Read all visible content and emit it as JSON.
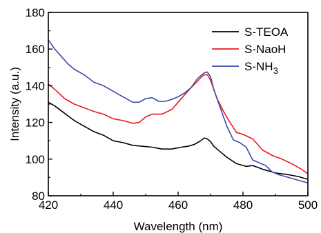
{
  "chart_data": {
    "type": "line",
    "title": "",
    "xlabel": "Wavelength (nm)",
    "ylabel": "Intensity (a.u.)",
    "xlim": [
      420,
      500
    ],
    "ylim": [
      80,
      180
    ],
    "xticks": [
      420,
      440,
      460,
      480,
      500
    ],
    "yticks": [
      80,
      100,
      120,
      140,
      160,
      180
    ],
    "grid": false,
    "legend_position": "top-right",
    "series": [
      {
        "name": "S-TEOA",
        "legend_main": "S-TEOA",
        "legend_sub": "",
        "color": "#000000",
        "x": [
          420,
          422,
          425,
          428,
          431,
          434,
          437,
          440,
          443,
          446,
          449,
          452,
          455,
          458,
          461,
          463,
          465,
          467,
          468,
          469,
          470,
          471,
          473,
          475,
          478,
          481,
          483,
          486,
          490,
          494,
          497,
          500
        ],
        "y": [
          131,
          129,
          125,
          121,
          118,
          115,
          113,
          110,
          109,
          107.5,
          107,
          106.5,
          105.5,
          105.5,
          106.5,
          107,
          108,
          110,
          111.5,
          111,
          109.5,
          107,
          104,
          101,
          97.5,
          96,
          96.5,
          94.5,
          92.5,
          91.5,
          90.5,
          89
        ]
      },
      {
        "name": "S-NaoH",
        "legend_main": "S-NaoH",
        "legend_sub": "",
        "color": "#e8191e",
        "x": [
          420,
          422,
          425,
          428,
          431,
          434,
          437,
          440,
          443,
          446,
          448,
          450,
          452,
          455,
          458,
          460,
          462,
          464,
          466,
          467,
          468,
          469,
          470,
          471,
          472,
          474,
          476,
          478,
          480,
          483,
          486,
          489,
          492,
          495,
          498,
          500
        ],
        "y": [
          141,
          138,
          133,
          130,
          128,
          126,
          124.5,
          122,
          121,
          119.5,
          120,
          123,
          124.5,
          124.5,
          127,
          131,
          135,
          139,
          142.5,
          144.5,
          146,
          146,
          143,
          138,
          133,
          126,
          120,
          114.5,
          113.5,
          111,
          105,
          102,
          100,
          97.5,
          94.5,
          92
        ]
      },
      {
        "name": "S-NH3",
        "legend_main": "S-NH",
        "legend_sub": "3",
        "color": "#3b4aa6",
        "x": [
          420,
          422,
          424,
          426,
          428,
          431,
          434,
          437,
          440,
          443,
          446,
          448,
          450,
          452,
          454,
          456,
          458,
          460,
          462,
          464,
          466,
          468,
          469,
          470,
          471,
          473,
          475,
          477,
          479,
          481,
          483,
          485,
          487,
          489,
          491,
          494,
          497,
          500
        ],
        "y": [
          165,
          160,
          156,
          152,
          149,
          146,
          142,
          140,
          137,
          134,
          131,
          131,
          133,
          133.5,
          131.5,
          131.5,
          132.5,
          134,
          136,
          139,
          144,
          147,
          147.5,
          145,
          138,
          128,
          118,
          110.5,
          109,
          106.5,
          99.5,
          98,
          96.5,
          93,
          91.5,
          90,
          88.5,
          87
        ]
      }
    ]
  }
}
